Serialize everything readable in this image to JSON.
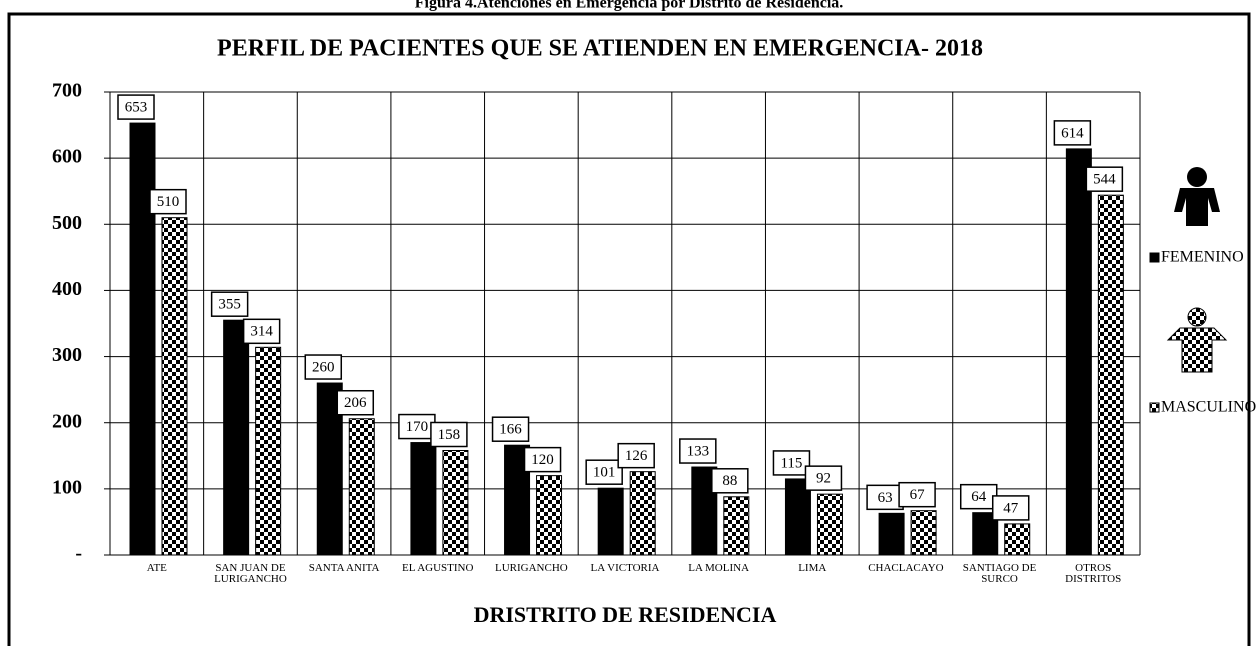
{
  "chart_data": {
    "type": "bar",
    "caption": "Figura 4.Atenciones en Emergencia por Distrito de Residencia.",
    "title": "PERFIL DE PACIENTES QUE SE ATIENDEN EN EMERGENCIA- 2018",
    "x_label": "DRISTRITO DE RESIDENCIA",
    "categories": [
      "ATE",
      "SAN JUAN DE LURIGANCHO",
      "SANTA ANITA",
      "EL AGUSTINO",
      "LURIGANCHO",
      "LA VICTORIA",
      "LA MOLINA",
      "LIMA",
      "CHACLACAYO",
      "SANTIAGO DE SURCO",
      "OTROS DISTRITOS"
    ],
    "series": [
      {
        "name": "FEMENINO",
        "color": "#000000",
        "pattern": "solid",
        "values": [
          653,
          355,
          260,
          170,
          166,
          101,
          133,
          115,
          63,
          64,
          614
        ]
      },
      {
        "name": "MASCULINO",
        "color": "#000000",
        "pattern": "checker",
        "values": [
          510,
          314,
          206,
          158,
          120,
          126,
          88,
          92,
          67,
          47,
          544
        ]
      }
    ],
    "ylim": [
      0,
      700
    ],
    "yticks": [
      {
        "value": 0,
        "label": "-"
      },
      100,
      200,
      300,
      400,
      500,
      600,
      700
    ],
    "grid": true,
    "legend": "right"
  }
}
